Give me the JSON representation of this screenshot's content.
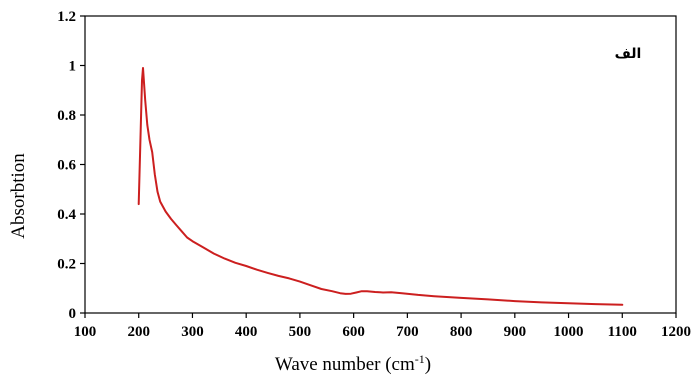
{
  "chart_data": {
    "type": "line",
    "title": "",
    "xlabel_main": "Wave number (cm",
    "xlabel_sup": "-1",
    "xlabel_close": ")",
    "ylabel": "Absorbtion",
    "annotation": "الف",
    "xlim": [
      100,
      1200
    ],
    "ylim": [
      0,
      1.2
    ],
    "xticks": [
      100,
      200,
      300,
      400,
      500,
      600,
      700,
      800,
      900,
      1000,
      1100,
      1200
    ],
    "yticks": [
      0,
      0.2,
      0.4,
      0.6,
      0.8,
      1,
      1.2
    ],
    "ytick_labels": [
      "0",
      "0.2",
      "0.4",
      "0.6",
      "0.8",
      "1",
      "1.2"
    ],
    "grid": false,
    "series": [
      {
        "color": "#cc1f1f",
        "x": [
          200,
          203,
          206,
          208,
          212,
          216,
          220,
          225,
          230,
          235,
          240,
          250,
          260,
          270,
          280,
          290,
          300,
          320,
          340,
          360,
          380,
          400,
          420,
          440,
          460,
          480,
          500,
          520,
          540,
          560,
          575,
          585,
          595,
          605,
          615,
          625,
          640,
          655,
          670,
          690,
          720,
          750,
          800,
          850,
          900,
          950,
          1000,
          1050,
          1100
        ],
        "y": [
          0.44,
          0.68,
          0.94,
          0.99,
          0.86,
          0.76,
          0.7,
          0.65,
          0.56,
          0.49,
          0.45,
          0.41,
          0.38,
          0.355,
          0.33,
          0.305,
          0.29,
          0.265,
          0.24,
          0.22,
          0.203,
          0.19,
          0.175,
          0.162,
          0.15,
          0.14,
          0.127,
          0.112,
          0.097,
          0.088,
          0.08,
          0.077,
          0.078,
          0.083,
          0.088,
          0.088,
          0.085,
          0.083,
          0.084,
          0.08,
          0.073,
          0.068,
          0.061,
          0.055,
          0.048,
          0.043,
          0.039,
          0.036,
          0.033
        ]
      }
    ]
  }
}
